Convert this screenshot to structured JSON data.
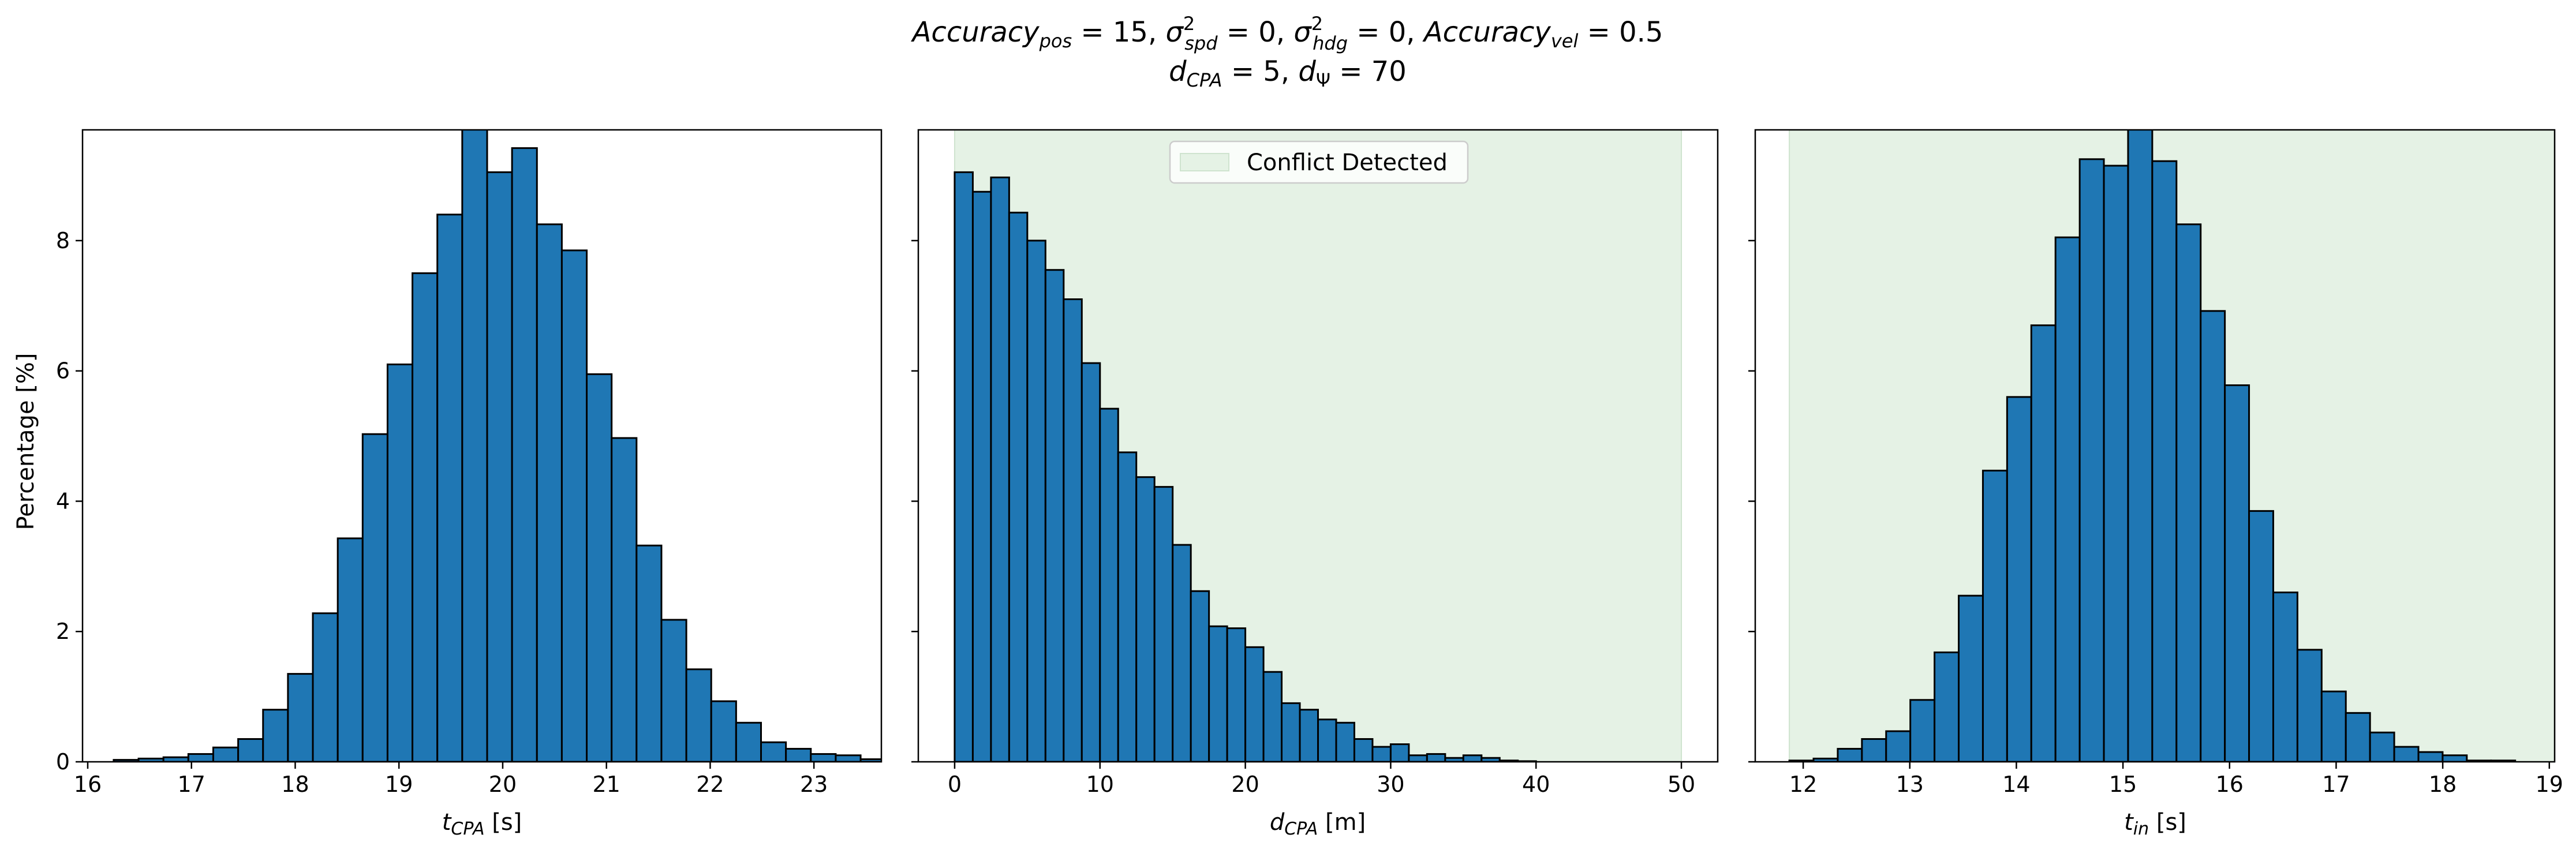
{
  "figure": {
    "title_line1": "Accuracy_pos = 15, σ²_spd = 0, σ²_hdg = 0, Accuracy_vel = 0.5",
    "title_line2": "d_CPA = 5, d_Ψ = 70",
    "title_parts": {
      "acc": "Accuracy",
      "pos": "pos",
      "eq15": " = 15, ",
      "sigma": "σ",
      "sq": "2",
      "spd": "spd",
      "eq0a": " = 0, ",
      "hdg": "hdg",
      "eq0b": " = 0, ",
      "vel": "vel",
      "eq05": " = 0.5",
      "d": "d",
      "cpa": "CPA",
      "eq5": " = 5, ",
      "psi": "Ψ",
      "eq70": " = 70"
    }
  },
  "colors": {
    "bar_fill": "#1f77b4",
    "bar_edge": "#000000",
    "shade": "#e5f2e5",
    "shade_edge": "#cfe3cf"
  },
  "axes_labels": {
    "ylabel": "Percentage [%]",
    "x1_sym": "t",
    "x1_sub": "CPA",
    "x1_unit": " [s]",
    "x2_sym": "d",
    "x2_sub": "CPA",
    "x2_unit": " [m]",
    "x3_sym": "t",
    "x3_sub": "in",
    "x3_unit": " [s]"
  },
  "legend": {
    "label": "Conflict Detected",
    "placement": "upper center of middle panel"
  },
  "chart_data": [
    {
      "type": "bar",
      "subtype": "histogram",
      "xlabel": "t_CPA [s]",
      "ylabel": "Percentage [%]",
      "xlim": [
        15.95,
        23.65
      ],
      "ylim": [
        0,
        9.7
      ],
      "xticks": [
        16,
        17,
        18,
        19,
        20,
        21,
        22,
        23
      ],
      "yticks": [
        0,
        2,
        4,
        6,
        8
      ],
      "bin_start": 16.25,
      "bin_width": 0.24,
      "values": [
        0.03,
        0.05,
        0.07,
        0.12,
        0.22,
        0.35,
        0.8,
        1.35,
        2.28,
        3.43,
        5.03,
        6.1,
        7.5,
        8.4,
        9.75,
        9.05,
        9.42,
        8.25,
        7.85,
        5.95,
        4.97,
        3.32,
        2.18,
        1.42,
        0.93,
        0.6,
        0.3,
        0.2,
        0.12,
        0.1,
        0.04
      ]
    },
    {
      "type": "bar",
      "subtype": "histogram",
      "xlabel": "d_CPA [m]",
      "xlim": [
        -2.5,
        52.5
      ],
      "ylim": [
        0,
        9.7
      ],
      "xticks": [
        0,
        10,
        20,
        30,
        40,
        50
      ],
      "yticks": [
        0,
        2,
        4,
        6,
        8
      ],
      "shaded_region": [
        0,
        50
      ],
      "bin_start": 0,
      "bin_width": 1.25,
      "values": [
        9.05,
        8.75,
        8.97,
        8.43,
        8.0,
        7.55,
        7.1,
        6.12,
        5.42,
        4.75,
        4.37,
        4.22,
        3.33,
        2.62,
        2.08,
        2.05,
        1.76,
        1.38,
        0.9,
        0.8,
        0.65,
        0.6,
        0.35,
        0.23,
        0.27,
        0.1,
        0.12,
        0.06,
        0.1,
        0.06,
        0.02,
        0.01
      ]
    },
    {
      "type": "bar",
      "subtype": "histogram",
      "xlabel": "t_in [s]",
      "xlim": [
        11.55,
        19.05
      ],
      "ylim": [
        0,
        9.7
      ],
      "xticks": [
        12,
        13,
        14,
        15,
        16,
        17,
        18,
        19
      ],
      "yticks": [
        0,
        2,
        4,
        6,
        8
      ],
      "shaded_region": [
        11.87,
        19.05
      ],
      "bin_start": 11.87,
      "bin_width": 0.227,
      "values": [
        0.02,
        0.05,
        0.2,
        0.35,
        0.47,
        0.95,
        1.68,
        2.55,
        4.47,
        5.6,
        6.7,
        8.05,
        9.25,
        9.15,
        9.75,
        9.22,
        8.25,
        6.92,
        5.78,
        3.85,
        2.6,
        1.72,
        1.08,
        0.75,
        0.45,
        0.23,
        0.15,
        0.1,
        0.02,
        0.02
      ]
    }
  ]
}
